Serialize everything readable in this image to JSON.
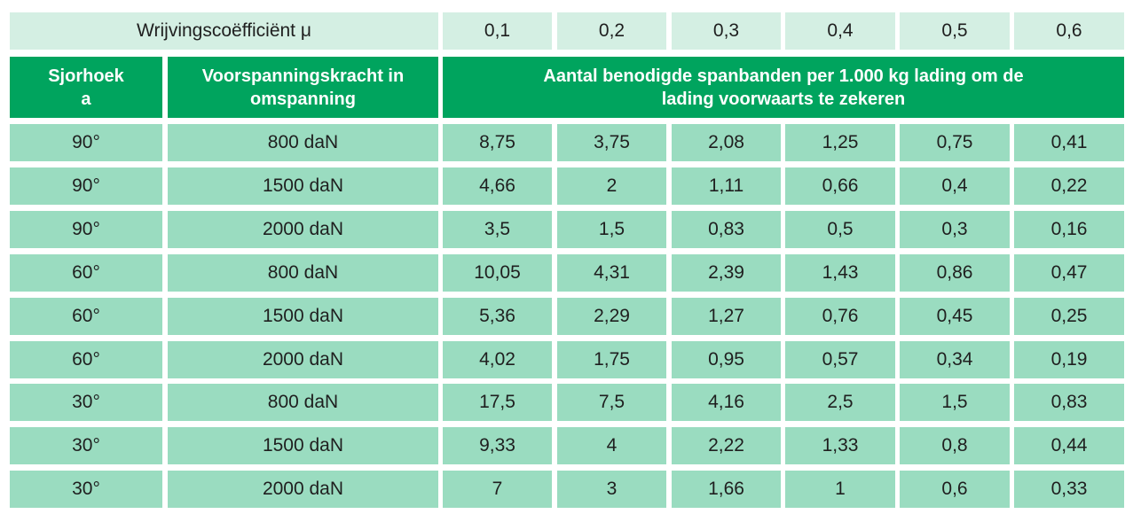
{
  "table": {
    "mu_label": "Wrijvingscoëfficiënt μ",
    "mu_values": [
      "0,1",
      "0,2",
      "0,3",
      "0,4",
      "0,5",
      "0,6"
    ],
    "headers": {
      "angle": "Sjorhoek\na",
      "pretension": "Voorspanningskracht in\nomspanning",
      "count": "Aantal benodigde spanbanden per 1.000 kg lading om de\nlading voorwaarts te zekeren"
    },
    "rows": [
      [
        "90°",
        "800 daN",
        "8,75",
        "3,75",
        "2,08",
        "1,25",
        "0,75",
        "0,41"
      ],
      [
        "90°",
        "1500 daN",
        "4,66",
        "2",
        "1,11",
        "0,66",
        "0,4",
        "0,22"
      ],
      [
        "90°",
        "2000 daN",
        "3,5",
        "1,5",
        "0,83",
        "0,5",
        "0,3",
        "0,16"
      ],
      [
        "60°",
        "800 daN",
        "10,05",
        "4,31",
        "2,39",
        "1,43",
        "0,86",
        "0,47"
      ],
      [
        "60°",
        "1500 daN",
        "5,36",
        "2,29",
        "1,27",
        "0,76",
        "0,45",
        "0,25"
      ],
      [
        "60°",
        "2000 daN",
        "4,02",
        "1,75",
        "0,95",
        "0,57",
        "0,34",
        "0,19"
      ],
      [
        "30°",
        "800 daN",
        "17,5",
        "7,5",
        "4,16",
        "2,5",
        "1,5",
        "0,83"
      ],
      [
        "30°",
        "1500 daN",
        "9,33",
        "4",
        "2,22",
        "1,33",
        "0,8",
        "0,44"
      ],
      [
        "30°",
        "2000 daN",
        "7",
        "3",
        "1,66",
        "1",
        "0,6",
        "0,33"
      ]
    ]
  },
  "colors": {
    "header_green": "#00a45e",
    "body_mint": "#9adcc0",
    "top_light": "#d4efe3"
  }
}
